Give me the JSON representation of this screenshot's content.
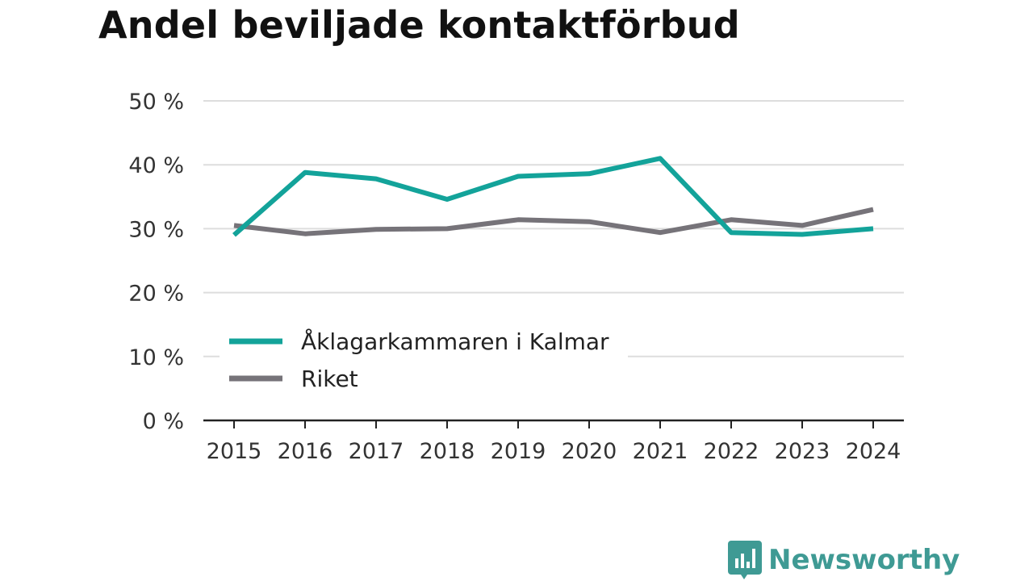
{
  "chart_data": {
    "type": "line",
    "title": "Andel beviljade kontaktförbud",
    "xlabel": "",
    "ylabel": "",
    "x": [
      "2015",
      "2016",
      "2017",
      "2018",
      "2019",
      "2020",
      "2021",
      "2022",
      "2023",
      "2024"
    ],
    "ylim": [
      0,
      50
    ],
    "yticks": [
      0,
      10,
      20,
      30,
      40,
      50
    ],
    "ytick_labels": [
      "0 %",
      "10 %",
      "20 %",
      "30 %",
      "40 %",
      "50 %"
    ],
    "grid": true,
    "legend_position": "bottom-left",
    "series": [
      {
        "name": "Åklagarkammaren i Kalmar",
        "color": "#13a39a",
        "values": [
          29.0,
          38.8,
          37.8,
          34.6,
          38.2,
          38.6,
          41.0,
          29.4,
          29.1,
          30.0
        ]
      },
      {
        "name": "Riket",
        "color": "#767379",
        "values": [
          30.5,
          29.2,
          29.9,
          30.0,
          31.4,
          31.1,
          29.4,
          31.4,
          30.5,
          33.0
        ]
      }
    ]
  },
  "brand": {
    "name": "Newsworthy",
    "logo_icon": "newsworthy-chart-bubble-icon",
    "color": "#3f9a94"
  }
}
